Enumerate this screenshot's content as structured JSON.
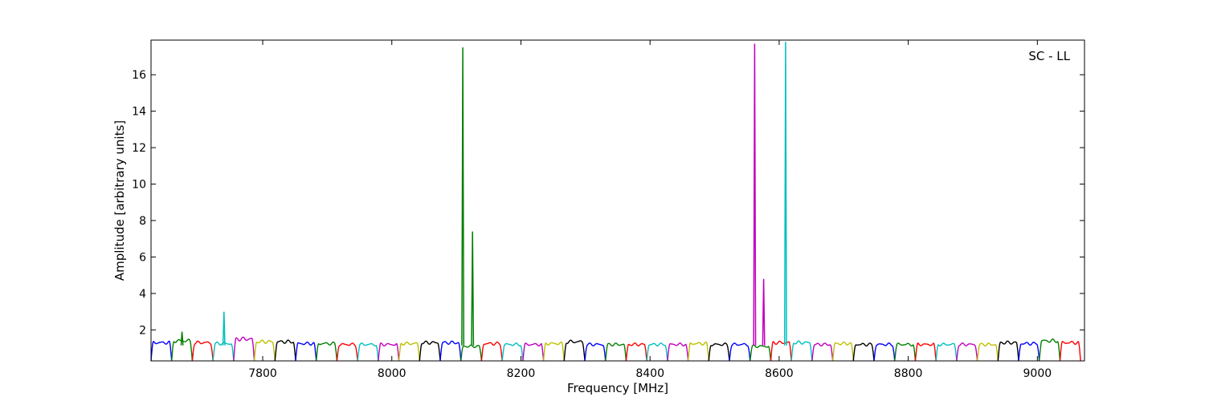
{
  "chart_data": {
    "type": "line",
    "title": "",
    "annotation": "SC - LL",
    "xlabel": "Frequency [MHz]",
    "ylabel": "Amplitude [arbitrary units]",
    "xlim": [
      7627,
      9073
    ],
    "ylim": [
      0.3,
      17.9
    ],
    "xticks": [
      7800,
      8000,
      8200,
      8400,
      8600,
      8800,
      9000
    ],
    "yticks": [
      2,
      4,
      6,
      8,
      10,
      12,
      14,
      16
    ],
    "grid": false,
    "legend": "none",
    "subband_width_mhz": 32,
    "color_cycle": [
      "#0000ff",
      "#007f00",
      "#ff0000",
      "#00bfbf",
      "#bf00bf",
      "#bfbf00",
      "#000000"
    ],
    "subbands_start_mhz": [
      7627,
      7659,
      7691,
      7723,
      7755,
      7787,
      7819,
      7851,
      7883,
      7915,
      7947,
      7979,
      8011,
      8043,
      8075,
      8107,
      8139,
      8171,
      8203,
      8235,
      8267,
      8299,
      8331,
      8363,
      8395,
      8427,
      8459,
      8491,
      8523,
      8555,
      8587,
      8619,
      8651,
      8683,
      8715,
      8747,
      8779,
      8811,
      8843,
      8875,
      8907,
      8939,
      8971,
      9003,
      9035
    ],
    "subband_levels": [
      1.3,
      1.4,
      1.3,
      1.25,
      1.5,
      1.35,
      1.35,
      1.25,
      1.25,
      1.2,
      1.2,
      1.2,
      1.25,
      1.3,
      1.3,
      1.1,
      1.25,
      1.2,
      1.2,
      1.25,
      1.35,
      1.2,
      1.2,
      1.2,
      1.2,
      1.2,
      1.25,
      1.2,
      1.2,
      1.1,
      1.3,
      1.3,
      1.2,
      1.25,
      1.2,
      1.2,
      1.2,
      1.2,
      1.2,
      1.2,
      1.2,
      1.3,
      1.25,
      1.4,
      1.3
    ],
    "spikes": [
      {
        "x": 7675,
        "y": 1.9,
        "color": "#007f00"
      },
      {
        "x": 7740,
        "y": 3.0,
        "color": "#00bfbf"
      },
      {
        "x": 8110,
        "y": 17.5,
        "color": "#007f00"
      },
      {
        "x": 8125,
        "y": 7.4,
        "color": "#007f00"
      },
      {
        "x": 8562,
        "y": 17.7,
        "color": "#bf00bf"
      },
      {
        "x": 8576,
        "y": 4.8,
        "color": "#bf00bf"
      },
      {
        "x": 8610,
        "y": 17.8,
        "color": "#00bfbf"
      }
    ]
  }
}
